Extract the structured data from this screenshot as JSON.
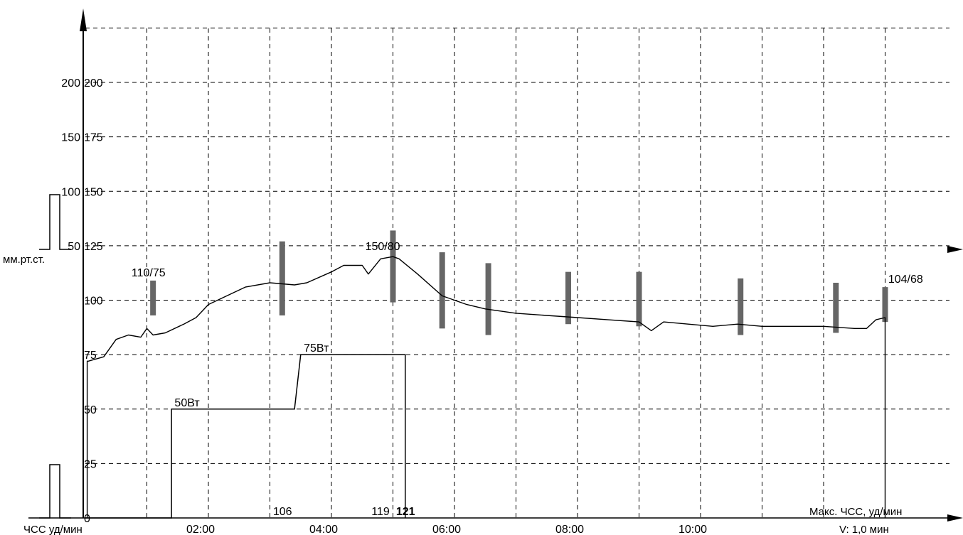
{
  "chart_data": {
    "type": "line",
    "x_unit": "min",
    "x_ticks": [
      "02:00",
      "04:00",
      "06:00",
      "08:00",
      "10:00"
    ],
    "xlim": [
      0,
      14
    ],
    "grid": true,
    "left_axis": {
      "label": "мм.рт.ст.",
      "tick_labels": [
        "200",
        "150",
        "100",
        "50"
      ]
    },
    "hr_axis": {
      "tick_labels": [
        "200",
        "175",
        "150",
        "125",
        "100",
        "75",
        "50",
        "25",
        "0"
      ],
      "ylim": [
        0,
        225
      ]
    },
    "bottom_left_label": "ЧСС уд/мин",
    "bottom_right_label": "Макс. ЧСС, уд/мин",
    "speed_label": "V: 1,0 мин",
    "heart_rate": [
      [
        0.05,
        72
      ],
      [
        0.3,
        74
      ],
      [
        0.5,
        82
      ],
      [
        0.7,
        84
      ],
      [
        0.9,
        83
      ],
      [
        1.0,
        87
      ],
      [
        1.1,
        84
      ],
      [
        1.3,
        85
      ],
      [
        1.6,
        89
      ],
      [
        1.8,
        92
      ],
      [
        2.0,
        98
      ],
      [
        2.3,
        102
      ],
      [
        2.6,
        106
      ],
      [
        3.0,
        108
      ],
      [
        3.4,
        107
      ],
      [
        3.6,
        108
      ],
      [
        4.0,
        113
      ],
      [
        4.2,
        116
      ],
      [
        4.5,
        116
      ],
      [
        4.6,
        112
      ],
      [
        4.8,
        119
      ],
      [
        5.0,
        120
      ],
      [
        5.1,
        119
      ],
      [
        5.4,
        112
      ],
      [
        5.8,
        102
      ],
      [
        6.2,
        98
      ],
      [
        6.5,
        96
      ],
      [
        7.0,
        94
      ],
      [
        7.5,
        93
      ],
      [
        8.0,
        92
      ],
      [
        8.5,
        91
      ],
      [
        9.0,
        90
      ],
      [
        9.2,
        86
      ],
      [
        9.4,
        90
      ],
      [
        9.8,
        89
      ],
      [
        10.2,
        88
      ],
      [
        10.6,
        89
      ],
      [
        11.0,
        88
      ],
      [
        11.5,
        88
      ],
      [
        12.0,
        88
      ],
      [
        12.5,
        87
      ],
      [
        12.7,
        87
      ],
      [
        12.85,
        91
      ],
      [
        13.0,
        92
      ]
    ],
    "heart_rate_end_drop": [
      13.0,
      0
    ],
    "load": {
      "steps": [
        [
          0,
          0
        ],
        [
          1.4,
          0
        ],
        [
          1.4,
          50
        ],
        [
          3.4,
          50
        ],
        [
          3.5,
          75
        ],
        [
          5.2,
          75
        ],
        [
          5.2,
          0
        ]
      ],
      "labels": [
        {
          "text": "50Вт",
          "x": 1.45,
          "y": 50
        },
        {
          "text": "75Вт",
          "x": 3.55,
          "y": 75
        }
      ]
    },
    "bp_bars": [
      {
        "x": 1.1,
        "top": 109,
        "bottom": 93
      },
      {
        "x": 3.2,
        "top": 127,
        "bottom": 93
      },
      {
        "x": 5.0,
        "top": 132,
        "bottom": 99
      },
      {
        "x": 5.8,
        "top": 122,
        "bottom": 87
      },
      {
        "x": 6.55,
        "top": 117,
        "bottom": 84
      },
      {
        "x": 7.85,
        "top": 113,
        "bottom": 89
      },
      {
        "x": 9.0,
        "top": 113,
        "bottom": 88
      },
      {
        "x": 10.65,
        "top": 110,
        "bottom": 84
      },
      {
        "x": 12.2,
        "top": 108,
        "bottom": 85
      },
      {
        "x": 13.0,
        "top": 106,
        "bottom": 90
      }
    ],
    "bp_labels": [
      {
        "text": "110/75",
        "x": 0.75,
        "y": 111
      },
      {
        "text": "150/80",
        "x": 4.55,
        "y": 123
      },
      {
        "text": "104/68",
        "x": 13.05,
        "y": 108
      }
    ],
    "max_hr_labels": [
      {
        "text": "106",
        "x": 3.05,
        "bold": false
      },
      {
        "text": "119",
        "x": 4.65,
        "bold": false
      },
      {
        "text": "121",
        "x": 5.05,
        "bold": true
      }
    ]
  }
}
